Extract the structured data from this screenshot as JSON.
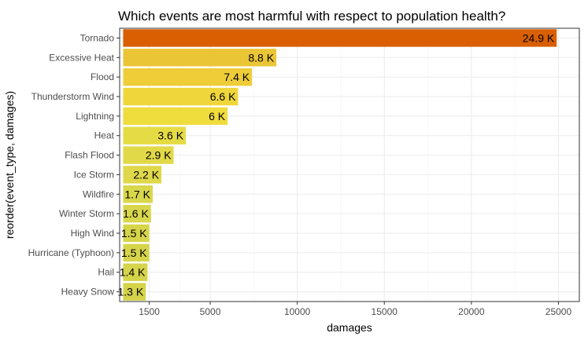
{
  "chart_data": {
    "type": "bar",
    "orientation": "horizontal",
    "title": "Which events are most harmful with respect to population health?",
    "xlabel": "damages",
    "ylabel": "reorder(event_type, damages)",
    "categories": [
      "Tornado",
      "Excessive Heat",
      "Flood",
      "Thunderstorm Wind",
      "Lightning",
      "Heat",
      "Flash Flood",
      "Ice Storm",
      "Wildfire",
      "Winter Storm",
      "High Wind",
      "Hurricane (Typhoon)",
      "Hail",
      "Heavy Snow"
    ],
    "values": [
      24900,
      8800,
      7400,
      6600,
      6000,
      3600,
      2900,
      2200,
      1700,
      1600,
      1500,
      1500,
      1400,
      1300
    ],
    "labels": [
      "24.9 K",
      "8.8 K",
      "7.4 K",
      "6.6 K",
      "6 K",
      "3.6 K",
      "2.9 K",
      "2.2 K",
      "1.7 K",
      "1.6 K",
      "1.5 K",
      "1.5 K",
      "1.4 K",
      "1.3 K"
    ],
    "colors": [
      "#d95f02",
      "#eac637",
      "#eecd38",
      "#efd63a",
      "#efdc3d",
      "#e5dc45",
      "#e2d948",
      "#dfd84a",
      "#d9d74b",
      "#d8d74b",
      "#d6d54a",
      "#d6d54a",
      "#d5d44a",
      "#d4d349"
    ],
    "x_ticks": [
      1500,
      5000,
      10000,
      15000,
      20000,
      25000
    ],
    "x_tick_labels": [
      "1500",
      "5000",
      "10000",
      "15000",
      "20000",
      "25000"
    ],
    "x_scale": "linear",
    "x_range": [
      -200,
      26200
    ],
    "bar_baseline": 0,
    "grid": true,
    "legend": "none"
  }
}
